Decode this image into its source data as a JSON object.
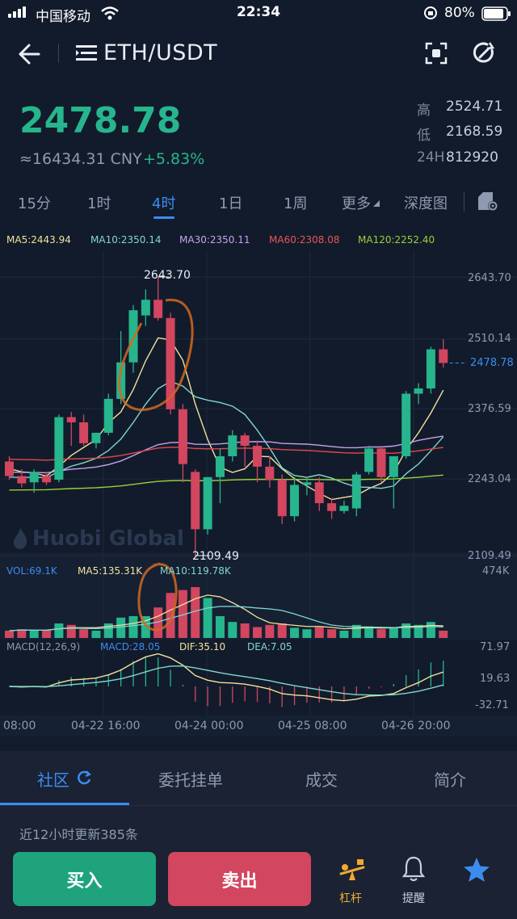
{
  "status_bar": {
    "carrier": "中国移动",
    "time": "22:34",
    "battery": "80%"
  },
  "nav": {
    "title": "ETH/USDT",
    "icons": [
      "back-arrow-icon",
      "menu-list-icon",
      "fullscreen-scan-icon",
      "share-refresh-icon"
    ]
  },
  "ticker": {
    "last_price": "2478.78",
    "cny_value": "≈16434.31 CNY",
    "change_pct": "+5.83%",
    "high_label": "高",
    "high_value": "2524.71",
    "low_label": "低",
    "low_value": "2168.59",
    "vol_label": "24H",
    "vol_value": "812920"
  },
  "timeframes": {
    "items": [
      "15分",
      "1时",
      "4时",
      "1日",
      "1周",
      "更多",
      "深度图"
    ],
    "active": "4时"
  },
  "ma_legend": {
    "ma5": "MA5:2443.94",
    "ma10": "MA10:2350.14",
    "ma30": "MA30:2350.11",
    "ma60": "MA60:2308.08",
    "ma120": "MA120:2252.40"
  },
  "volume_legend": {
    "vol": "VOL:69.1K",
    "ma5": "MA5:135.31K",
    "ma10": "MA10:119.78K",
    "max": "474K"
  },
  "macd_legend": {
    "params": "MACD(12,26,9)",
    "macd": "MACD:28.05",
    "dif": "DIF:35.10",
    "dea": "DEA:7.05",
    "y_top": "71.97",
    "y_mid": "19.63",
    "y_bot": "-32.71"
  },
  "watermark": "Huobi Global",
  "chart_data": {
    "type": "candlestick",
    "y_axis_labels": [
      "2643.70",
      "2510.14",
      "2376.59",
      "2243.04",
      "2109.49"
    ],
    "ylim": [
      2109.49,
      2643.7
    ],
    "max_marker": "2643.70",
    "min_marker": "2109.49",
    "current_price_label": "2478.78",
    "x_labels": [
      "08:00",
      "04-22 16:00",
      "04-24 00:00",
      "04-25 08:00",
      "04-26 20:00"
    ],
    "candles": [
      {
        "o": 2290,
        "h": 2300,
        "l": 2255,
        "c": 2262
      },
      {
        "o": 2262,
        "h": 2275,
        "l": 2240,
        "c": 2248
      },
      {
        "o": 2250,
        "h": 2275,
        "l": 2230,
        "c": 2270
      },
      {
        "o": 2262,
        "h": 2270,
        "l": 2245,
        "c": 2250
      },
      {
        "o": 2255,
        "h": 2380,
        "l": 2250,
        "c": 2375
      },
      {
        "o": 2375,
        "h": 2385,
        "l": 2320,
        "c": 2365
      },
      {
        "o": 2365,
        "h": 2380,
        "l": 2320,
        "c": 2325
      },
      {
        "o": 2325,
        "h": 2345,
        "l": 2315,
        "c": 2345
      },
      {
        "o": 2345,
        "h": 2420,
        "l": 2340,
        "c": 2410
      },
      {
        "o": 2410,
        "h": 2540,
        "l": 2400,
        "c": 2480
      },
      {
        "o": 2480,
        "h": 2590,
        "l": 2460,
        "c": 2580
      },
      {
        "o": 2570,
        "h": 2620,
        "l": 2550,
        "c": 2600
      },
      {
        "o": 2600,
        "h": 2643.7,
        "l": 2560,
        "c": 2565
      },
      {
        "o": 2565,
        "h": 2575,
        "l": 2380,
        "c": 2390
      },
      {
        "o": 2390,
        "h": 2400,
        "l": 2250,
        "c": 2285
      },
      {
        "o": 2270,
        "h": 2275,
        "l": 2109.49,
        "c": 2160
      },
      {
        "o": 2160,
        "h": 2260,
        "l": 2150,
        "c": 2260
      },
      {
        "o": 2260,
        "h": 2315,
        "l": 2210,
        "c": 2300
      },
      {
        "o": 2300,
        "h": 2350,
        "l": 2290,
        "c": 2340
      },
      {
        "o": 2340,
        "h": 2345,
        "l": 2280,
        "c": 2320
      },
      {
        "o": 2320,
        "h": 2330,
        "l": 2250,
        "c": 2280
      },
      {
        "o": 2280,
        "h": 2300,
        "l": 2240,
        "c": 2255
      },
      {
        "o": 2255,
        "h": 2265,
        "l": 2170,
        "c": 2185
      },
      {
        "o": 2185,
        "h": 2260,
        "l": 2175,
        "c": 2245
      },
      {
        "o": 2245,
        "h": 2260,
        "l": 2225,
        "c": 2250
      },
      {
        "o": 2250,
        "h": 2260,
        "l": 2195,
        "c": 2210
      },
      {
        "o": 2210,
        "h": 2220,
        "l": 2180,
        "c": 2195
      },
      {
        "o": 2195,
        "h": 2215,
        "l": 2190,
        "c": 2205
      },
      {
        "o": 2200,
        "h": 2270,
        "l": 2185,
        "c": 2265
      },
      {
        "o": 2270,
        "h": 2320,
        "l": 2265,
        "c": 2315
      },
      {
        "o": 2315,
        "h": 2320,
        "l": 2250,
        "c": 2260
      },
      {
        "o": 2260,
        "h": 2300,
        "l": 2200,
        "c": 2300
      },
      {
        "o": 2300,
        "h": 2425,
        "l": 2295,
        "c": 2420
      },
      {
        "o": 2420,
        "h": 2440,
        "l": 2400,
        "c": 2430
      },
      {
        "o": 2430,
        "h": 2510.14,
        "l": 2420,
        "c": 2505
      },
      {
        "o": 2505,
        "h": 2524.71,
        "l": 2470,
        "c": 2478.78
      }
    ],
    "volume_max": "474K",
    "volumes": [
      0.1,
      0.12,
      0.1,
      0.11,
      0.2,
      0.18,
      0.12,
      0.1,
      0.2,
      0.28,
      0.3,
      0.3,
      0.42,
      0.62,
      0.66,
      0.7,
      0.55,
      0.3,
      0.22,
      0.2,
      0.15,
      0.18,
      0.2,
      0.14,
      0.12,
      0.15,
      0.12,
      0.1,
      0.18,
      0.16,
      0.12,
      0.14,
      0.2,
      0.18,
      0.22,
      0.1
    ]
  },
  "bottom_tabs": {
    "items": [
      "社区",
      "委托挂单",
      "成交",
      "简介"
    ],
    "active": "社区",
    "update_note": "近12小时更新385条"
  },
  "actions": {
    "buy": "买入",
    "sell": "卖出",
    "leverage": "杠杆",
    "alert": "提醒"
  },
  "colors": {
    "up": "#27b58d",
    "down": "#d2465f",
    "accent": "#3c8cf0",
    "ma5": "#f2e29b",
    "ma10": "#7fd8cf",
    "ma30": "#c8a0f0",
    "ma60": "#e04a4a",
    "ma120": "#9ad13a"
  }
}
